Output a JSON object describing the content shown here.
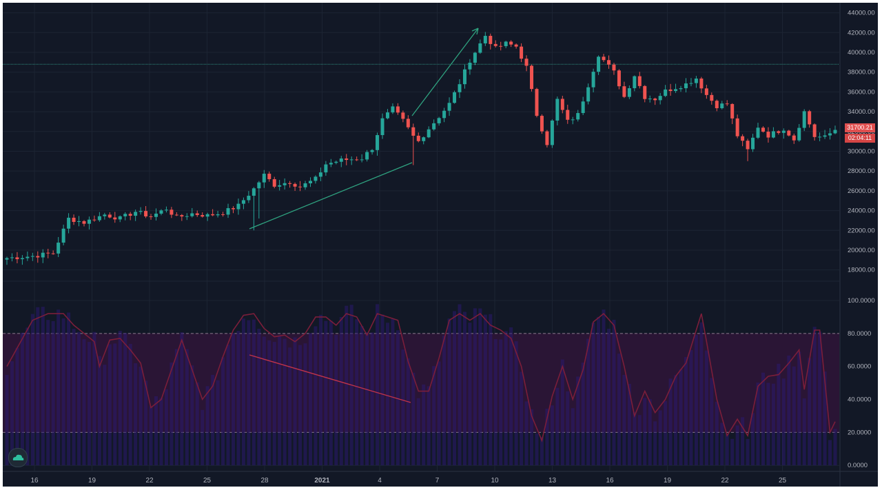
{
  "colors": {
    "background": "#121826",
    "grid": "#1c2433",
    "up": "#26a69a",
    "down": "#ef5350",
    "axis_text": "#b2b5be",
    "band_fill": "#2a1535",
    "band_line": "#8a7a8f",
    "osc_line": "#7b1e3a",
    "osc_hist": "#2a1a6e",
    "trend_up": "#2fa380",
    "trend_down": "#c0334a",
    "resistance_line": "#2f8f80"
  },
  "price_tags": {
    "tag1": "31700.21",
    "tag2": "02:04:11"
  },
  "legend": {
    "main": "",
    "oscillator": ""
  },
  "logo_icon": "cloud-icon",
  "chart_data": [
    {
      "type": "candlestick",
      "title": "",
      "y_ticks": [
        "44000.00",
        "42000.00",
        "40000.00",
        "38000.00",
        "36000.00",
        "34000.00",
        "32000.00",
        "30000.00",
        "28000.00",
        "26000.00",
        "24000.00",
        "22000.00",
        "20000.00",
        "18000.00"
      ],
      "x_ticks": [
        "16",
        "19",
        "22",
        "25",
        "28",
        "2021",
        "4",
        "7",
        "10",
        "13",
        "16",
        "19",
        "22",
        "25"
      ],
      "ylim": [
        17000,
        44600
      ],
      "horizontal_line": 38800,
      "anchor_points": [
        [
          0,
          19200
        ],
        [
          5,
          19400
        ],
        [
          9,
          19700
        ],
        [
          12,
          23200
        ],
        [
          15,
          22800
        ],
        [
          19,
          23600
        ],
        [
          22,
          23200
        ],
        [
          25,
          23900
        ],
        [
          28,
          23400
        ],
        [
          31,
          24200
        ],
        [
          33,
          23300
        ],
        [
          36,
          23700
        ],
        [
          39,
          23500
        ],
        [
          42,
          23800
        ],
        [
          45,
          24500
        ],
        [
          48,
          26200
        ],
        [
          50,
          27600
        ],
        [
          52,
          26600
        ],
        [
          55,
          26900
        ],
        [
          57,
          26400
        ],
        [
          60,
          27200
        ],
        [
          62,
          28700
        ],
        [
          65,
          29100
        ],
        [
          69,
          29300
        ],
        [
          71,
          30300
        ],
        [
          73,
          33200
        ],
        [
          75,
          34300
        ],
        [
          77,
          33100
        ],
        [
          79,
          31500
        ],
        [
          80,
          31000
        ],
        [
          82,
          32300
        ],
        [
          84,
          33500
        ],
        [
          86,
          34800
        ],
        [
          88,
          36900
        ],
        [
          90,
          39200
        ],
        [
          93,
          41700
        ],
        [
          95,
          40400
        ],
        [
          97,
          40900
        ],
        [
          99,
          40600
        ],
        [
          101,
          38500
        ],
        [
          103,
          33700
        ],
        [
          105,
          30800
        ],
        [
          107,
          35200
        ],
        [
          109,
          33000
        ],
        [
          111,
          33700
        ],
        [
          113,
          36700
        ],
        [
          115,
          39800
        ],
        [
          118,
          38000
        ],
        [
          120,
          35500
        ],
        [
          122,
          37700
        ],
        [
          124,
          35500
        ],
        [
          126,
          35300
        ],
        [
          128,
          36100
        ],
        [
          132,
          36800
        ],
        [
          134,
          37400
        ],
        [
          136,
          35700
        ],
        [
          138,
          34600
        ],
        [
          140,
          34800
        ],
        [
          142,
          31600
        ],
        [
          144,
          30100
        ],
        [
          146,
          32500
        ],
        [
          148,
          31600
        ],
        [
          151,
          32300
        ],
        [
          153,
          31200
        ],
        [
          155,
          34000
        ],
        [
          157,
          31500
        ],
        [
          159,
          31400
        ],
        [
          161,
          32200
        ]
      ],
      "candles": 162
    },
    {
      "type": "line",
      "title": "",
      "y_ticks": [
        "100.0000",
        "80.0000",
        "60.0000",
        "40.0000",
        "20.0000",
        "0.0000"
      ],
      "ylim": [
        -2,
        105
      ],
      "bands": [
        20,
        80
      ],
      "anchor_points": [
        [
          0,
          60
        ],
        [
          5,
          88
        ],
        [
          8,
          92
        ],
        [
          11,
          92
        ],
        [
          13,
          85
        ],
        [
          15,
          80
        ],
        [
          17,
          75
        ],
        [
          18,
          60
        ],
        [
          20,
          76
        ],
        [
          22,
          77
        ],
        [
          24,
          70
        ],
        [
          26,
          62
        ],
        [
          28,
          35
        ],
        [
          30,
          40
        ],
        [
          32,
          58
        ],
        [
          34,
          76
        ],
        [
          36,
          58
        ],
        [
          38,
          40
        ],
        [
          40,
          48
        ],
        [
          42,
          66
        ],
        [
          44,
          82
        ],
        [
          46,
          91
        ],
        [
          48,
          92
        ],
        [
          50,
          83
        ],
        [
          52,
          78
        ],
        [
          54,
          79
        ],
        [
          56,
          75
        ],
        [
          58,
          80
        ],
        [
          60,
          90
        ],
        [
          62,
          90
        ],
        [
          64,
          85
        ],
        [
          66,
          92
        ],
        [
          68,
          90
        ],
        [
          70,
          79
        ],
        [
          72,
          92
        ],
        [
          74,
          90
        ],
        [
          76,
          88
        ],
        [
          78,
          63
        ],
        [
          80,
          45
        ],
        [
          82,
          45
        ],
        [
          84,
          65
        ],
        [
          86,
          88
        ],
        [
          88,
          92
        ],
        [
          90,
          88
        ],
        [
          92,
          92
        ],
        [
          94,
          85
        ],
        [
          96,
          82
        ],
        [
          98,
          77
        ],
        [
          100,
          60
        ],
        [
          102,
          30
        ],
        [
          104,
          15
        ],
        [
          106,
          42
        ],
        [
          108,
          60
        ],
        [
          110,
          40
        ],
        [
          112,
          58
        ],
        [
          114,
          87
        ],
        [
          116,
          92
        ],
        [
          118,
          85
        ],
        [
          120,
          60
        ],
        [
          122,
          30
        ],
        [
          124,
          45
        ],
        [
          126,
          32
        ],
        [
          128,
          40
        ],
        [
          130,
          54
        ],
        [
          132,
          62
        ],
        [
          134,
          82
        ],
        [
          135,
          92
        ],
        [
          136,
          75
        ],
        [
          138,
          40
        ],
        [
          140,
          18
        ],
        [
          142,
          28
        ],
        [
          144,
          18
        ],
        [
          146,
          48
        ],
        [
          148,
          54
        ],
        [
          150,
          55
        ],
        [
          152,
          62
        ],
        [
          154,
          70
        ],
        [
          155,
          46
        ],
        [
          157,
          82
        ],
        [
          158,
          82
        ],
        [
          160,
          20
        ],
        [
          162,
          33
        ]
      ]
    }
  ]
}
